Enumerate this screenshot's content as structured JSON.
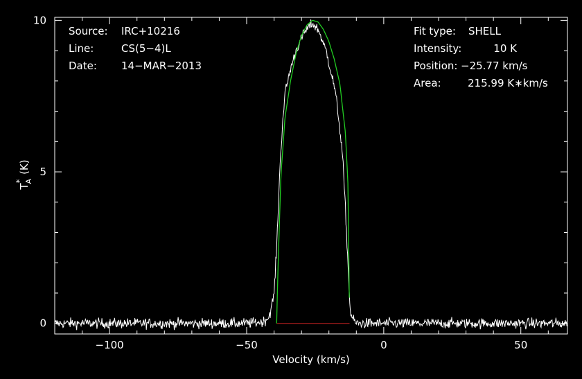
{
  "info_left": {
    "source_label": "Source:",
    "source_value": "IRC+10216",
    "line_label": "Line:",
    "line_value": "CS(5−4)L",
    "date_label": "Date:",
    "date_value": "14−MAR−2013"
  },
  "info_right": {
    "fit_label": "Fit type:",
    "fit_value": "SHELL",
    "intensity_label": "Intensity:",
    "intensity_value": "10 K",
    "position_label": "Position:",
    "position_value": "−25.77 km/s",
    "area_label": "Area:",
    "area_value": "215.99 K∗km/s"
  },
  "colors": {
    "spectrum": "#ffffff",
    "fit": "#22cc22",
    "baseline": "#cc2222",
    "frame": "#ffffff",
    "background": "#000000"
  },
  "chart_data": {
    "type": "line",
    "xlabel": "Velocity (km/s)",
    "ylabel_main": "T",
    "ylabel_sub": "A",
    "ylabel_sup": "*",
    "ylabel_unit": "(K)",
    "xlim": [
      -120,
      67
    ],
    "ylim": [
      -0.35,
      10.1
    ],
    "xticks": [
      -100,
      -50,
      0,
      50
    ],
    "xtick_labels": [
      "−100",
      "−50",
      "0",
      "50"
    ],
    "yticks": [
      0,
      5,
      10
    ],
    "ytick_labels": [
      "0",
      "5",
      "10"
    ],
    "shell_fit": {
      "center": -25.77,
      "peak": 10,
      "half_width": 13.3,
      "v_start": -39.07,
      "v_end": -12.47
    },
    "fit_curve": {
      "x": [
        -39.07,
        -38.5,
        -37.5,
        -36,
        -34,
        -32,
        -30,
        -28,
        -26,
        -24,
        -22,
        -20,
        -18,
        -16,
        -14,
        -13,
        -12.47
      ],
      "y": [
        0,
        2.0,
        4.9,
        6.8,
        8.0,
        8.9,
        9.5,
        9.85,
        10.0,
        9.95,
        9.7,
        9.3,
        8.7,
        7.9,
        6.3,
        4.5,
        0
      ]
    },
    "baseline": {
      "x": [
        -39.07,
        -12.47
      ],
      "y": [
        0,
        0
      ]
    },
    "spectrum": {
      "x": [
        -120,
        -110,
        -100,
        -90,
        -80,
        -70,
        -60,
        -50,
        -44,
        -42,
        -41,
        -40,
        -39,
        -38,
        -37,
        -36,
        -35,
        -34,
        -33,
        -32,
        -31,
        -30,
        -29,
        -28,
        -27,
        -26,
        -25,
        -24,
        -23,
        -22,
        -21,
        -20,
        -19,
        -18,
        -17,
        -16,
        -15,
        -14,
        -13,
        -12.5,
        -12,
        -11,
        -10,
        0,
        10,
        20,
        30,
        40,
        50,
        60,
        67
      ],
      "y": [
        0,
        0,
        0,
        0,
        0,
        0,
        0,
        0,
        0.05,
        0.2,
        0.5,
        1.0,
        2.6,
        4.9,
        6.5,
        7.6,
        8.0,
        8.4,
        8.7,
        9.0,
        9.2,
        9.4,
        9.6,
        9.7,
        9.8,
        9.9,
        9.8,
        9.7,
        9.5,
        9.2,
        9.0,
        8.6,
        8.2,
        7.8,
        7.2,
        6.4,
        5.5,
        3.8,
        1.9,
        0.8,
        0.3,
        0.1,
        0,
        0,
        0,
        0,
        0,
        0,
        0,
        0,
        0
      ],
      "noise_sigma": 0.12
    }
  }
}
